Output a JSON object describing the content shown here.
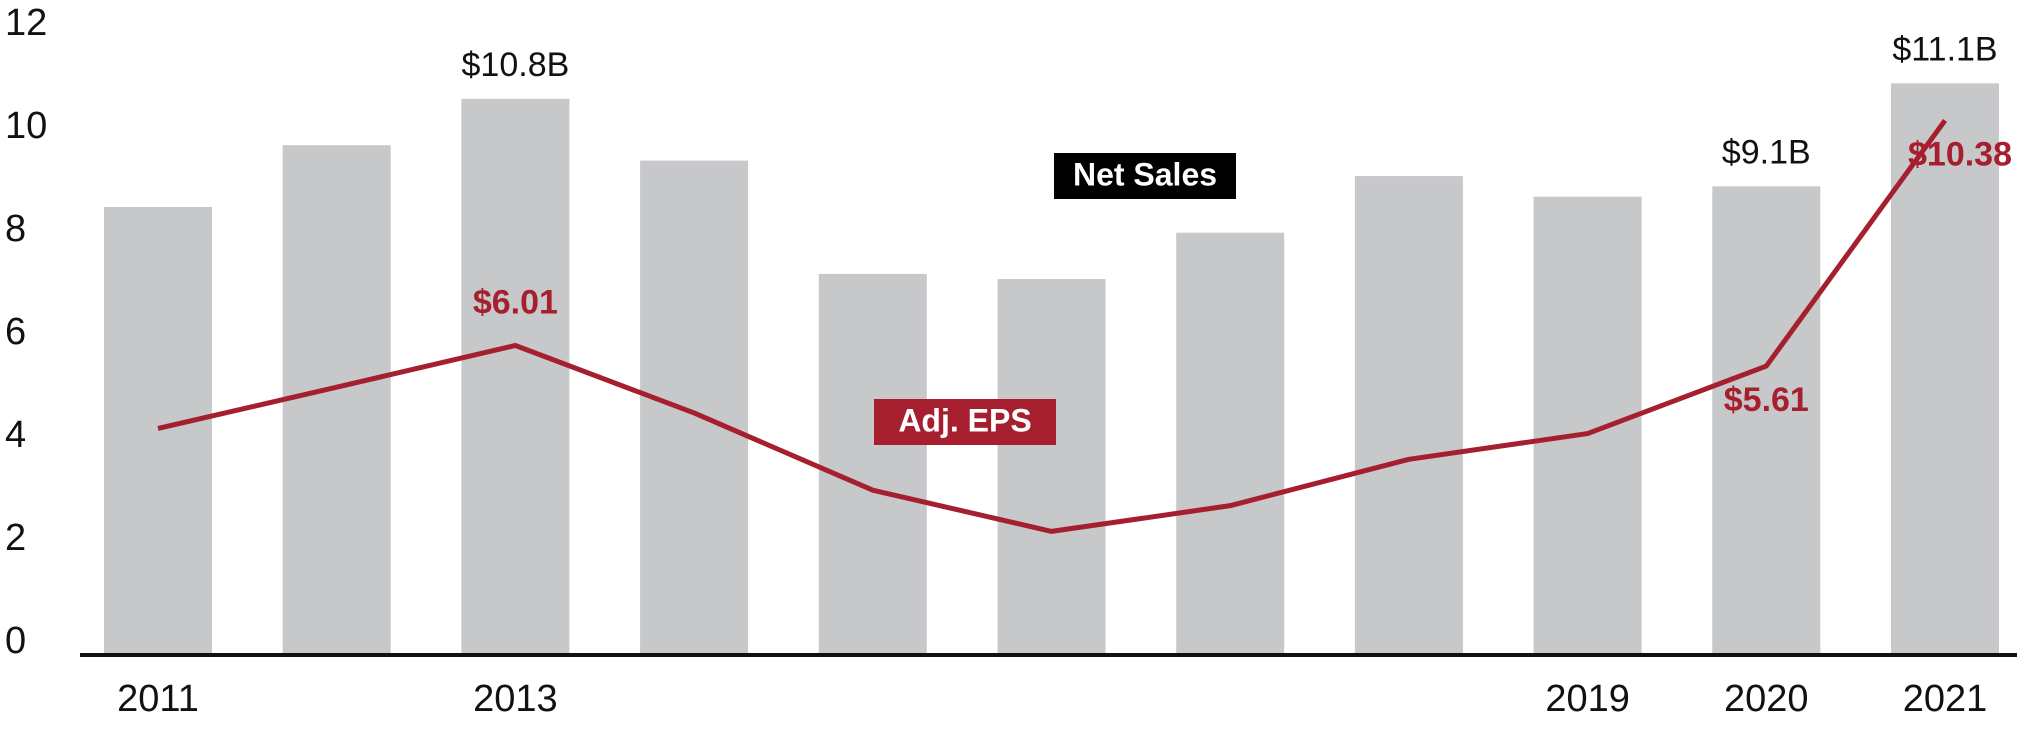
{
  "chart_data": {
    "type": "bar_line",
    "categories": [
      "2011",
      null,
      "2013",
      null,
      null,
      null,
      null,
      null,
      "2019",
      "2020",
      "2021"
    ],
    "series": [
      {
        "name": "Net Sales",
        "type": "bar",
        "color": "#c7c8ca",
        "values": [
          8.7,
          9.9,
          10.8,
          9.6,
          7.4,
          7.3,
          8.2,
          9.3,
          8.9,
          9.1,
          11.1
        ],
        "value_labels": [
          null,
          null,
          "$10.8B",
          null,
          null,
          null,
          null,
          null,
          null,
          "$9.1B",
          "$11.1B"
        ]
      },
      {
        "name": "Adj. EPS",
        "type": "line",
        "color": "#a61f2e",
        "values": [
          4.4,
          5.2,
          6.01,
          4.7,
          3.2,
          2.4,
          2.9,
          3.8,
          4.3,
          5.61,
          10.38
        ],
        "value_labels": [
          null,
          null,
          "$6.01",
          null,
          null,
          null,
          null,
          null,
          null,
          "$5.61",
          "$10.38"
        ]
      }
    ],
    "ylim": [
      0,
      12
    ],
    "yticks": [
      0,
      2,
      4,
      6,
      8,
      10,
      12
    ]
  }
}
